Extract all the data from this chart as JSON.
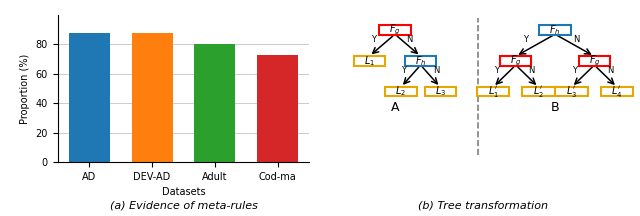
{
  "bar_categories": [
    "AD",
    "DEV-AD",
    "Adult",
    "Cod-ma"
  ],
  "bar_values": [
    88,
    88,
    80,
    73
  ],
  "bar_colors": [
    "#1f77b4",
    "#ff7f0e",
    "#2ca02c",
    "#d62728"
  ],
  "ylabel": "Proportion (%)",
  "xlabel": "Datasets",
  "ylim": [
    0,
    100
  ],
  "yticks": [
    0,
    20,
    40,
    60,
    80
  ],
  "caption_a": "(a) Evidence of meta-rules",
  "caption_b": "(b) Tree transformation",
  "grid_color": "#cccccc",
  "background_color": "#ffffff"
}
